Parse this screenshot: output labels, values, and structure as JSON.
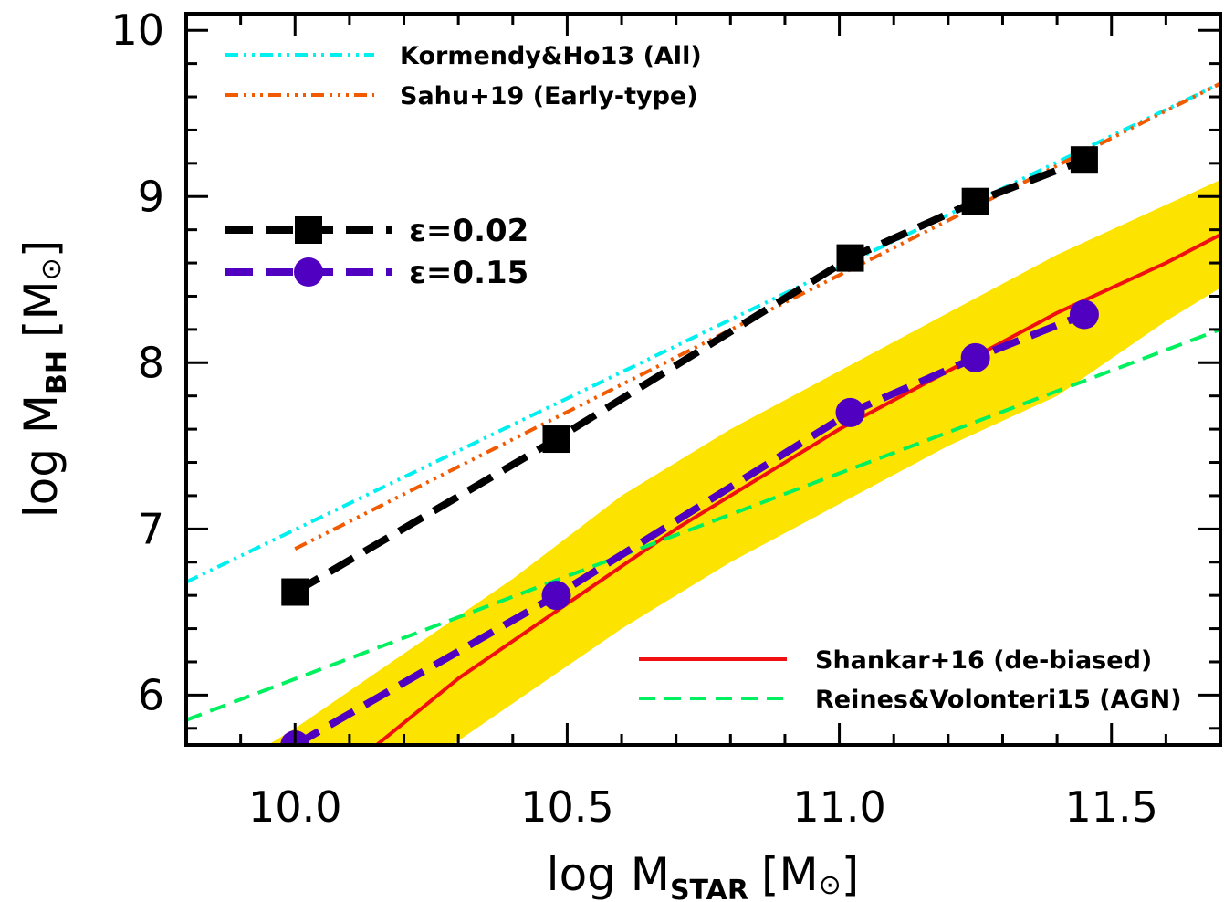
{
  "chart_data": {
    "type": "line",
    "xlabel": {
      "prefix": "log M",
      "sub": "STAR",
      "unit": "[M",
      "sun": "⊙",
      "close": "]"
    },
    "ylabel": {
      "prefix": "log M",
      "sub": "BH",
      "unit": "[M",
      "sun": "⊙",
      "close": "]"
    },
    "xlim": [
      9.8,
      11.7
    ],
    "ylim": [
      5.7,
      10.1
    ],
    "xticks": [
      10.0,
      10.5,
      11.0,
      11.5
    ],
    "xtick_labels": [
      "10.0",
      "10.5",
      "11.0",
      "11.5"
    ],
    "yticks": [
      6,
      7,
      8,
      9,
      10
    ],
    "ytick_labels": [
      "6",
      "7",
      "8",
      "9",
      "10"
    ],
    "grid": false,
    "band": {
      "series": "Shankar+16 (de-biased)",
      "color": "#fce300",
      "x": [
        9.8,
        10.0,
        10.2,
        10.4,
        10.6,
        10.8,
        11.0,
        11.2,
        11.4,
        11.6,
        11.7
      ],
      "lower": [
        4.7,
        5.1,
        5.5,
        5.95,
        6.4,
        6.8,
        7.15,
        7.5,
        7.8,
        8.25,
        8.45
      ],
      "upper": [
        5.4,
        5.8,
        6.25,
        6.7,
        7.2,
        7.6,
        7.95,
        8.3,
        8.65,
        8.95,
        9.1
      ]
    },
    "series": [
      {
        "name": "Kormendy&Ho13 (All)",
        "color": "#00f0f0",
        "dash": "dashdotdot",
        "x": [
          9.8,
          11.7
        ],
        "y": [
          6.68,
          9.68
        ]
      },
      {
        "name": "Sahu+19 (Early-type)",
        "color": "#f25a00",
        "dash": "dashdotdotdot",
        "x": [
          10.0,
          11.7
        ],
        "y": [
          6.88,
          9.68
        ]
      },
      {
        "name": "Shankar+16 (de-biased)",
        "color": "#f01010",
        "dash": "solid",
        "x": [
          10.15,
          10.3,
          10.5,
          10.7,
          10.9,
          11.0,
          11.2,
          11.4,
          11.6,
          11.7
        ],
        "y": [
          5.7,
          6.1,
          6.55,
          7.0,
          7.4,
          7.6,
          7.95,
          8.3,
          8.6,
          8.77
        ]
      },
      {
        "name": "Reines&Volonteri15 (AGN)",
        "color": "#00f060",
        "dash": "dashed",
        "x": [
          9.8,
          11.7
        ],
        "y": [
          5.85,
          8.2
        ]
      },
      {
        "name": "ε=0.02",
        "color": "#000000",
        "dash": "longdash",
        "marker": "square",
        "x": [
          10.0,
          10.48,
          11.02,
          11.25,
          11.45
        ],
        "y": [
          6.62,
          7.54,
          8.63,
          8.97,
          9.22
        ]
      },
      {
        "name": "ε=0.15",
        "color": "#5000c0",
        "dash": "longdash",
        "marker": "circle",
        "x": [
          10.0,
          10.48,
          11.02,
          11.25,
          11.45
        ],
        "y": [
          5.7,
          6.6,
          7.7,
          8.03,
          8.29
        ]
      }
    ],
    "legends": {
      "top_left": [
        "Kormendy&Ho13 (All)",
        "Sahu+19 (Early-type)"
      ],
      "middle_left": [
        "ε=0.02",
        "ε=0.15"
      ],
      "bottom_right": [
        "Shankar+16 (de-biased)",
        "Reines&Volonteri15 (AGN)"
      ]
    }
  }
}
